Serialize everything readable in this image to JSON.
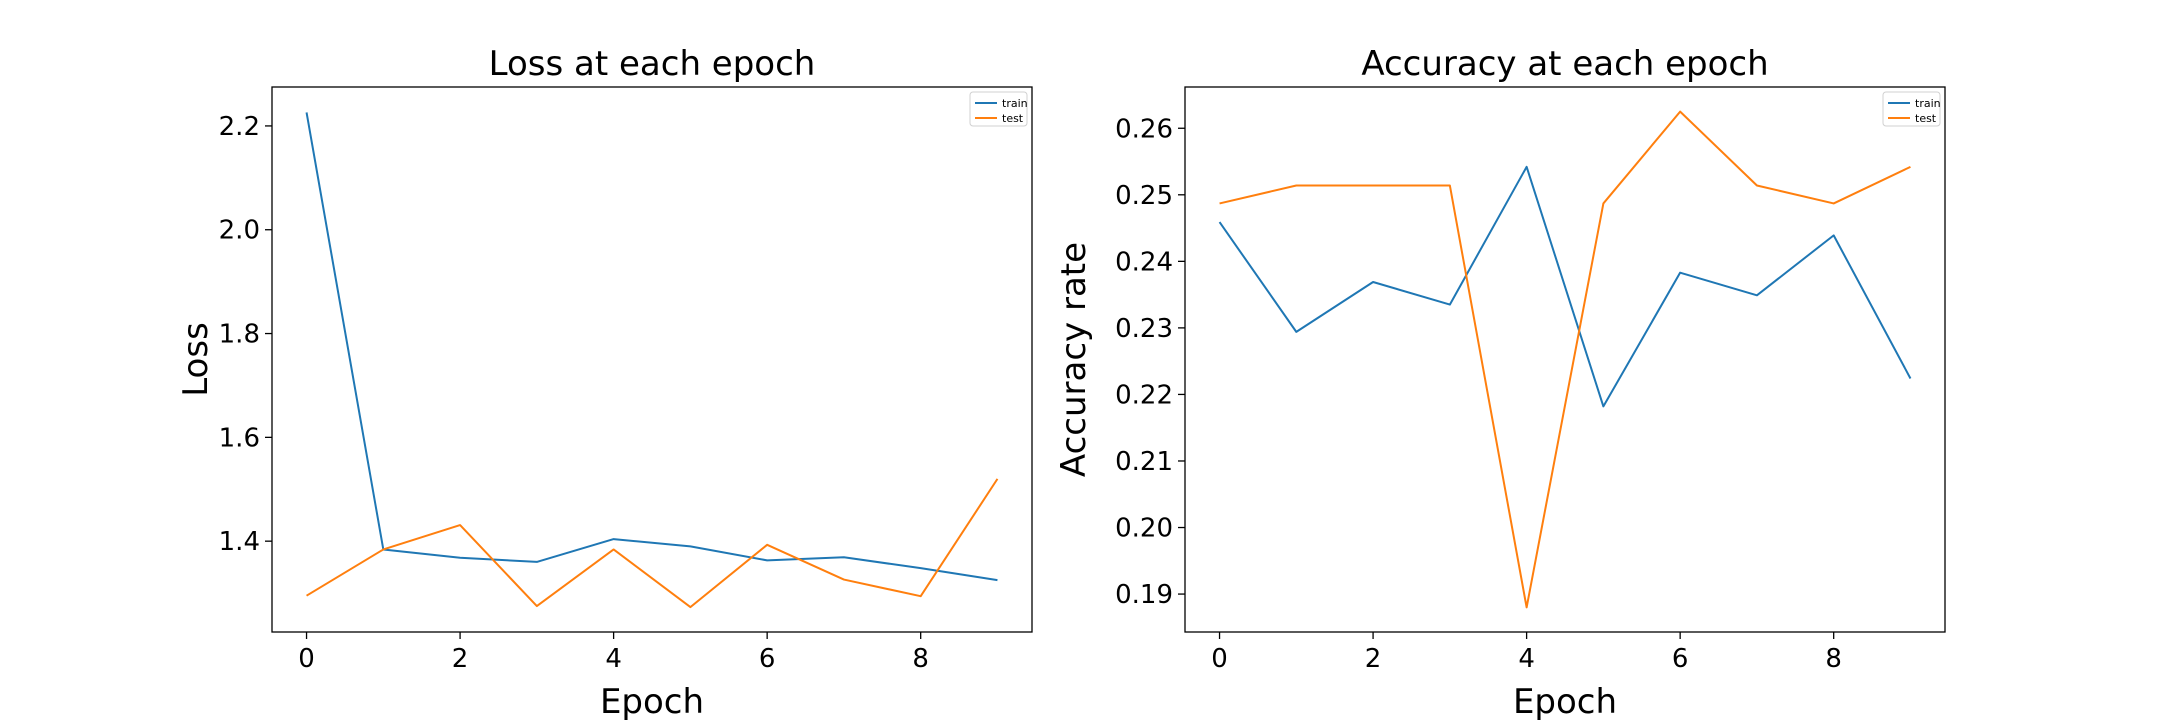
{
  "chart_data": [
    {
      "type": "line",
      "title": "Loss at each epoch",
      "xlabel": "Epoch",
      "ylabel": "Loss",
      "x": [
        0,
        1,
        2,
        3,
        4,
        5,
        6,
        7,
        8,
        9
      ],
      "xlim": [
        -0.45,
        9.45
      ],
      "ylim": [
        1.225,
        2.275
      ],
      "xticks": [
        0,
        2,
        4,
        6,
        8
      ],
      "yticks": [
        1.4,
        1.6,
        1.8,
        2.0,
        2.2
      ],
      "ytick_labels": [
        "1.4",
        "1.6",
        "1.8",
        "2.0",
        "2.2"
      ],
      "legend_position": "top-right",
      "grid": false,
      "series": [
        {
          "name": "train",
          "color": "#1f77b4",
          "values": [
            2.226,
            1.384,
            1.368,
            1.36,
            1.404,
            1.39,
            1.363,
            1.369,
            1.348,
            1.325
          ]
        },
        {
          "name": "test",
          "color": "#ff7f0e",
          "values": [
            1.295,
            1.384,
            1.431,
            1.275,
            1.384,
            1.273,
            1.393,
            1.326,
            1.294,
            1.52
          ]
        }
      ]
    },
    {
      "type": "line",
      "title": "Accuracy at each epoch",
      "xlabel": "Epoch",
      "ylabel": "Accuracy rate",
      "x": [
        0,
        1,
        2,
        3,
        4,
        5,
        6,
        7,
        8,
        9
      ],
      "xlim": [
        -0.45,
        9.45
      ],
      "ylim": [
        0.1843,
        0.2662
      ],
      "xticks": [
        0,
        2,
        4,
        6,
        8
      ],
      "yticks": [
        0.19,
        0.2,
        0.21,
        0.22,
        0.23,
        0.24,
        0.25,
        0.26
      ],
      "ytick_labels": [
        "0.19",
        "0.20",
        "0.21",
        "0.22",
        "0.23",
        "0.24",
        "0.25",
        "0.26"
      ],
      "legend_position": "top-right",
      "grid": false,
      "series": [
        {
          "name": "train",
          "color": "#1f77b4",
          "values": [
            0.2459,
            0.2294,
            0.2369,
            0.2335,
            0.2542,
            0.2182,
            0.2383,
            0.2349,
            0.2439,
            0.2224
          ]
        },
        {
          "name": "test",
          "color": "#ff7f0e",
          "values": [
            0.2487,
            0.2514,
            0.2514,
            0.2514,
            0.188,
            0.2487,
            0.2625,
            0.2514,
            0.2487,
            0.2542
          ]
        }
      ]
    }
  ]
}
